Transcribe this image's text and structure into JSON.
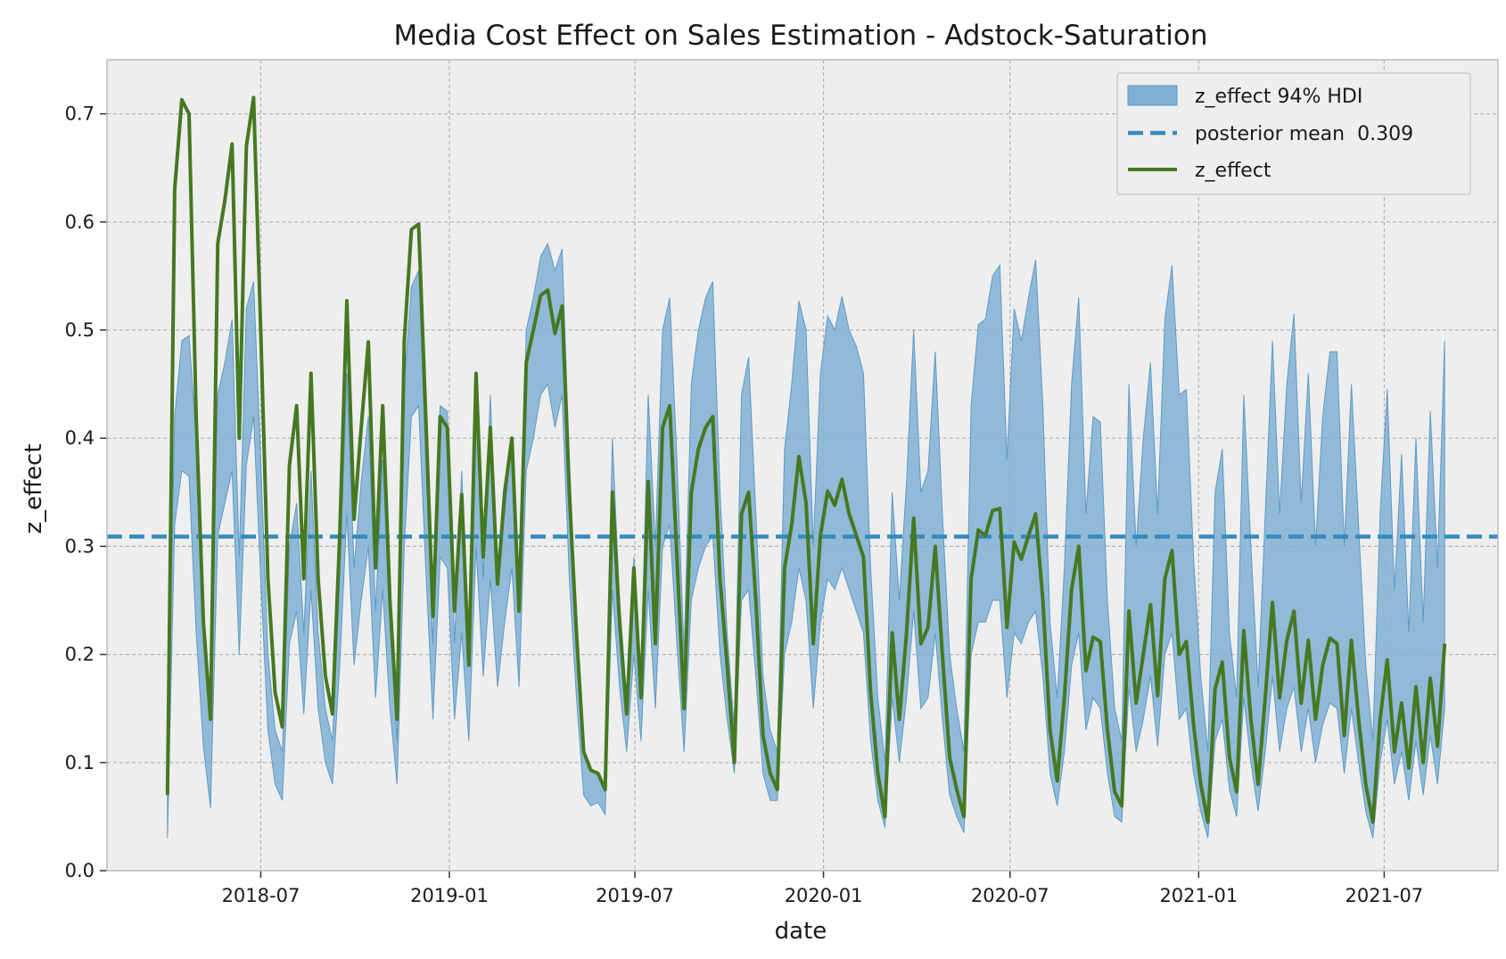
{
  "chart_data": {
    "type": "line",
    "title": "Media Cost Effect on Sales Estimation - Adstock-Saturation",
    "xlabel": "date",
    "ylabel": "z_effect",
    "xlim": [
      "2018-02-01",
      "2021-10-20"
    ],
    "ylim": [
      0,
      0.75
    ],
    "grid": true,
    "legend_position": "top-right",
    "x_ticks": [
      "2018-07",
      "2019-01",
      "2019-07",
      "2020-01",
      "2020-07",
      "2021-01",
      "2021-07"
    ],
    "y_ticks": [
      "0.0",
      "0.1",
      "0.2",
      "0.3",
      "0.4",
      "0.5",
      "0.6",
      "0.7"
    ],
    "legend": [
      "z_effect 94% HDI",
      "posterior mean  0.309",
      "z_effect"
    ],
    "colors": {
      "background": "#eeeeee",
      "grid": "#b2b2b2",
      "band_fill": "#7fb0d3",
      "band_edge": "#5f9ac5",
      "mean_line": "#348abd",
      "series_line": "#467821"
    },
    "series": [
      {
        "name": "z_effect",
        "dates": [
          "2018-04-01",
          "2018-04-08",
          "2018-04-15",
          "2018-04-22",
          "2018-04-29",
          "2018-05-06",
          "2018-05-13",
          "2018-05-20",
          "2018-05-27",
          "2018-06-03",
          "2018-06-10",
          "2018-06-17",
          "2018-06-24",
          "2018-07-01",
          "2018-07-08",
          "2018-07-15",
          "2018-07-22",
          "2018-07-29",
          "2018-08-05",
          "2018-08-12",
          "2018-08-19",
          "2018-08-26",
          "2018-09-02",
          "2018-09-09",
          "2018-09-16",
          "2018-09-23",
          "2018-09-30",
          "2018-10-07",
          "2018-10-14",
          "2018-10-21",
          "2018-10-28",
          "2018-11-04",
          "2018-11-11",
          "2018-11-18",
          "2018-11-25",
          "2018-12-02",
          "2018-12-09",
          "2018-12-16",
          "2018-12-23",
          "2018-12-30",
          "2019-01-06",
          "2019-01-13",
          "2019-01-20",
          "2019-01-27",
          "2019-02-03",
          "2019-02-10",
          "2019-02-17",
          "2019-02-24",
          "2019-03-03",
          "2019-03-10",
          "2019-03-17",
          "2019-03-24",
          "2019-03-31",
          "2019-04-07",
          "2019-04-14",
          "2019-04-21",
          "2019-04-28",
          "2019-05-05",
          "2019-05-12",
          "2019-05-19",
          "2019-05-26",
          "2019-06-02",
          "2019-06-09",
          "2019-06-16",
          "2019-06-23",
          "2019-06-30",
          "2019-07-07",
          "2019-07-14",
          "2019-07-21",
          "2019-07-28",
          "2019-08-04",
          "2019-08-11",
          "2019-08-18",
          "2019-08-25",
          "2019-09-01",
          "2019-09-08",
          "2019-09-15",
          "2019-09-22",
          "2019-09-29",
          "2019-10-06",
          "2019-10-13",
          "2019-10-20",
          "2019-10-27",
          "2019-11-03",
          "2019-11-10",
          "2019-11-17",
          "2019-11-24",
          "2019-12-01",
          "2019-12-08",
          "2019-12-15",
          "2019-12-22",
          "2019-12-29",
          "2020-01-05",
          "2020-01-12",
          "2020-01-19",
          "2020-01-26",
          "2020-02-02",
          "2020-02-09",
          "2020-02-16",
          "2020-02-23",
          "2020-03-01",
          "2020-03-08",
          "2020-03-15",
          "2020-03-22",
          "2020-03-29",
          "2020-04-05",
          "2020-04-12",
          "2020-04-19",
          "2020-04-26",
          "2020-05-03",
          "2020-05-10",
          "2020-05-17",
          "2020-05-24",
          "2020-05-31",
          "2020-06-07",
          "2020-06-14",
          "2020-06-21",
          "2020-06-28",
          "2020-07-05",
          "2020-07-12",
          "2020-07-19",
          "2020-07-26",
          "2020-08-02",
          "2020-08-09",
          "2020-08-16",
          "2020-08-23",
          "2020-08-30",
          "2020-09-06",
          "2020-09-13",
          "2020-09-20",
          "2020-09-27",
          "2020-10-04",
          "2020-10-11",
          "2020-10-18",
          "2020-10-25",
          "2020-11-01",
          "2020-11-08",
          "2020-11-15",
          "2020-11-22",
          "2020-11-29",
          "2020-12-06",
          "2020-12-13",
          "2020-12-20",
          "2020-12-27",
          "2021-01-03",
          "2021-01-10",
          "2021-01-17",
          "2021-01-24",
          "2021-01-31",
          "2021-02-07",
          "2021-02-14",
          "2021-02-21",
          "2021-02-28",
          "2021-03-07",
          "2021-03-14",
          "2021-03-21",
          "2021-03-28",
          "2021-04-04",
          "2021-04-11",
          "2021-04-18",
          "2021-04-25",
          "2021-05-02",
          "2021-05-09",
          "2021-05-16",
          "2021-05-23",
          "2021-05-30",
          "2021-06-06",
          "2021-06-13",
          "2021-06-20",
          "2021-06-27",
          "2021-07-04",
          "2021-07-11",
          "2021-07-18",
          "2021-07-25",
          "2021-08-01",
          "2021-08-08",
          "2021-08-15",
          "2021-08-22",
          "2021-08-29"
        ],
        "values": [
          0.07,
          0.63,
          0.713,
          0.7,
          0.42,
          0.23,
          0.14,
          0.58,
          0.62,
          0.672,
          0.4,
          0.67,
          0.715,
          0.5,
          0.27,
          0.165,
          0.133,
          0.375,
          0.43,
          0.27,
          0.46,
          0.27,
          0.18,
          0.145,
          0.31,
          0.527,
          0.325,
          0.41,
          0.489,
          0.28,
          0.43,
          0.25,
          0.14,
          0.49,
          0.593,
          0.598,
          0.42,
          0.235,
          0.42,
          0.41,
          0.24,
          0.348,
          0.19,
          0.46,
          0.29,
          0.41,
          0.265,
          0.35,
          0.4,
          0.24,
          0.47,
          0.5,
          0.532,
          0.537,
          0.497,
          0.522,
          0.35,
          0.22,
          0.11,
          0.093,
          0.09,
          0.075,
          0.35,
          0.23,
          0.145,
          0.28,
          0.16,
          0.36,
          0.21,
          0.41,
          0.43,
          0.29,
          0.15,
          0.35,
          0.39,
          0.41,
          0.42,
          0.27,
          0.19,
          0.1,
          0.33,
          0.35,
          0.25,
          0.125,
          0.09,
          0.075,
          0.28,
          0.32,
          0.383,
          0.34,
          0.21,
          0.31,
          0.351,
          0.338,
          0.362,
          0.33,
          0.31,
          0.29,
          0.165,
          0.09,
          0.05,
          0.22,
          0.14,
          0.22,
          0.326,
          0.21,
          0.225,
          0.3,
          0.2,
          0.105,
          0.075,
          0.05,
          0.27,
          0.315,
          0.31,
          0.333,
          0.335,
          0.225,
          0.304,
          0.288,
          0.31,
          0.33,
          0.25,
          0.13,
          0.083,
          0.16,
          0.26,
          0.3,
          0.185,
          0.216,
          0.212,
          0.13,
          0.073,
          0.06,
          0.24,
          0.155,
          0.2,
          0.246,
          0.162,
          0.27,
          0.296,
          0.2,
          0.212,
          0.135,
          0.08,
          0.045,
          0.168,
          0.193,
          0.105,
          0.073,
          0.222,
          0.14,
          0.08,
          0.16,
          0.248,
          0.16,
          0.213,
          0.24,
          0.155,
          0.213,
          0.14,
          0.19,
          0.215,
          0.21,
          0.125,
          0.213,
          0.14,
          0.08,
          0.045,
          0.14,
          0.195,
          0.11,
          0.155,
          0.095,
          0.17,
          0.1,
          0.178,
          0.115,
          0.21
        ]
      },
      {
        "name": "z_effect 94% HDI",
        "dates": [
          "2018-04-01",
          "2018-04-08",
          "2018-04-15",
          "2018-04-22",
          "2018-04-29",
          "2018-05-06",
          "2018-05-13",
          "2018-05-20",
          "2018-05-27",
          "2018-06-03",
          "2018-06-10",
          "2018-06-17",
          "2018-06-24",
          "2018-07-01",
          "2018-07-08",
          "2018-07-15",
          "2018-07-22",
          "2018-07-29",
          "2018-08-05",
          "2018-08-12",
          "2018-08-19",
          "2018-08-26",
          "2018-09-02",
          "2018-09-09",
          "2018-09-16",
          "2018-09-23",
          "2018-09-30",
          "2018-10-07",
          "2018-10-14",
          "2018-10-21",
          "2018-10-28",
          "2018-11-04",
          "2018-11-11",
          "2018-11-18",
          "2018-11-25",
          "2018-12-02",
          "2018-12-09",
          "2018-12-16",
          "2018-12-23",
          "2018-12-30",
          "2019-01-06",
          "2019-01-13",
          "2019-01-20",
          "2019-01-27",
          "2019-02-03",
          "2019-02-10",
          "2019-02-17",
          "2019-02-24",
          "2019-03-03",
          "2019-03-10",
          "2019-03-17",
          "2019-03-24",
          "2019-03-31",
          "2019-04-07",
          "2019-04-14",
          "2019-04-21",
          "2019-04-28",
          "2019-05-05",
          "2019-05-12",
          "2019-05-19",
          "2019-05-26",
          "2019-06-02",
          "2019-06-09",
          "2019-06-16",
          "2019-06-23",
          "2019-06-30",
          "2019-07-07",
          "2019-07-14",
          "2019-07-21",
          "2019-07-28",
          "2019-08-04",
          "2019-08-11",
          "2019-08-18",
          "2019-08-25",
          "2019-09-01",
          "2019-09-08",
          "2019-09-15",
          "2019-09-22",
          "2019-09-29",
          "2019-10-06",
          "2019-10-13",
          "2019-10-20",
          "2019-10-27",
          "2019-11-03",
          "2019-11-10",
          "2019-11-17",
          "2019-11-24",
          "2019-12-01",
          "2019-12-08",
          "2019-12-15",
          "2019-12-22",
          "2019-12-29",
          "2020-01-05",
          "2020-01-12",
          "2020-01-19",
          "2020-01-26",
          "2020-02-02",
          "2020-02-09",
          "2020-02-16",
          "2020-02-23",
          "2020-03-01",
          "2020-03-08",
          "2020-03-15",
          "2020-03-22",
          "2020-03-29",
          "2020-04-05",
          "2020-04-12",
          "2020-04-19",
          "2020-04-26",
          "2020-05-03",
          "2020-05-10",
          "2020-05-17",
          "2020-05-24",
          "2020-05-31",
          "2020-06-07",
          "2020-06-14",
          "2020-06-21",
          "2020-06-28",
          "2020-07-05",
          "2020-07-12",
          "2020-07-19",
          "2020-07-26",
          "2020-08-02",
          "2020-08-09",
          "2020-08-16",
          "2020-08-23",
          "2020-08-30",
          "2020-09-06",
          "2020-09-13",
          "2020-09-20",
          "2020-09-27",
          "2020-10-04",
          "2020-10-11",
          "2020-10-18",
          "2020-10-25",
          "2020-11-01",
          "2020-11-08",
          "2020-11-15",
          "2020-11-22",
          "2020-11-29",
          "2020-12-06",
          "2020-12-13",
          "2020-12-20",
          "2020-12-27",
          "2021-01-03",
          "2021-01-10",
          "2021-01-17",
          "2021-01-24",
          "2021-01-31",
          "2021-02-07",
          "2021-02-14",
          "2021-02-21",
          "2021-02-28",
          "2021-03-07",
          "2021-03-14",
          "2021-03-21",
          "2021-03-28",
          "2021-04-04",
          "2021-04-11",
          "2021-04-18",
          "2021-04-25",
          "2021-05-02",
          "2021-05-09",
          "2021-05-16",
          "2021-05-23",
          "2021-05-30",
          "2021-06-06",
          "2021-06-13",
          "2021-06-20",
          "2021-06-27",
          "2021-07-04",
          "2021-07-11",
          "2021-07-18",
          "2021-07-25",
          "2021-08-01",
          "2021-08-08",
          "2021-08-15",
          "2021-08-22",
          "2021-08-29"
        ],
        "lower": [
          0.03,
          0.32,
          0.37,
          0.365,
          0.22,
          0.115,
          0.058,
          0.31,
          0.34,
          0.37,
          0.2,
          0.375,
          0.42,
          0.27,
          0.13,
          0.08,
          0.065,
          0.21,
          0.24,
          0.145,
          0.26,
          0.15,
          0.1,
          0.08,
          0.19,
          0.33,
          0.19,
          0.25,
          0.3,
          0.16,
          0.26,
          0.15,
          0.08,
          0.3,
          0.42,
          0.43,
          0.28,
          0.14,
          0.29,
          0.28,
          0.14,
          0.22,
          0.12,
          0.3,
          0.18,
          0.27,
          0.17,
          0.23,
          0.28,
          0.17,
          0.37,
          0.4,
          0.44,
          0.45,
          0.41,
          0.44,
          0.27,
          0.16,
          0.07,
          0.06,
          0.063,
          0.052,
          0.26,
          0.17,
          0.11,
          0.2,
          0.12,
          0.26,
          0.15,
          0.3,
          0.32,
          0.21,
          0.11,
          0.25,
          0.28,
          0.3,
          0.31,
          0.2,
          0.14,
          0.09,
          0.25,
          0.26,
          0.18,
          0.09,
          0.065,
          0.065,
          0.2,
          0.23,
          0.28,
          0.25,
          0.15,
          0.23,
          0.27,
          0.26,
          0.28,
          0.26,
          0.24,
          0.22,
          0.12,
          0.065,
          0.04,
          0.16,
          0.1,
          0.16,
          0.24,
          0.15,
          0.16,
          0.22,
          0.14,
          0.07,
          0.05,
          0.035,
          0.2,
          0.23,
          0.23,
          0.25,
          0.25,
          0.16,
          0.22,
          0.21,
          0.23,
          0.24,
          0.18,
          0.09,
          0.06,
          0.11,
          0.19,
          0.22,
          0.13,
          0.16,
          0.15,
          0.09,
          0.05,
          0.045,
          0.17,
          0.11,
          0.14,
          0.18,
          0.115,
          0.2,
          0.22,
          0.14,
          0.15,
          0.09,
          0.055,
          0.03,
          0.12,
          0.14,
          0.075,
          0.05,
          0.16,
          0.1,
          0.055,
          0.11,
          0.18,
          0.11,
          0.15,
          0.17,
          0.11,
          0.15,
          0.1,
          0.135,
          0.155,
          0.15,
          0.09,
          0.15,
          0.1,
          0.055,
          0.03,
          0.1,
          0.14,
          0.08,
          0.11,
          0.065,
          0.12,
          0.07,
          0.125,
          0.08,
          0.15
        ],
        "upper": [
          0.1,
          0.42,
          0.49,
          0.495,
          0.4,
          0.23,
          0.14,
          0.44,
          0.47,
          0.51,
          0.29,
          0.52,
          0.545,
          0.38,
          0.2,
          0.13,
          0.11,
          0.3,
          0.34,
          0.22,
          0.37,
          0.22,
          0.15,
          0.12,
          0.27,
          0.46,
          0.28,
          0.36,
          0.42,
          0.24,
          0.38,
          0.23,
          0.12,
          0.45,
          0.54,
          0.555,
          0.38,
          0.21,
          0.43,
          0.425,
          0.21,
          0.37,
          0.19,
          0.45,
          0.27,
          0.44,
          0.27,
          0.33,
          0.4,
          0.26,
          0.5,
          0.53,
          0.568,
          0.58,
          0.555,
          0.575,
          0.38,
          0.23,
          0.11,
          0.093,
          0.09,
          0.075,
          0.4,
          0.25,
          0.16,
          0.29,
          0.18,
          0.44,
          0.3,
          0.5,
          0.53,
          0.38,
          0.2,
          0.45,
          0.5,
          0.53,
          0.545,
          0.35,
          0.22,
          0.13,
          0.44,
          0.475,
          0.33,
          0.18,
          0.13,
          0.11,
          0.39,
          0.45,
          0.527,
          0.5,
          0.3,
          0.46,
          0.513,
          0.5,
          0.531,
          0.5,
          0.485,
          0.46,
          0.28,
          0.16,
          0.1,
          0.35,
          0.25,
          0.36,
          0.5,
          0.35,
          0.37,
          0.48,
          0.33,
          0.2,
          0.15,
          0.11,
          0.43,
          0.505,
          0.51,
          0.55,
          0.56,
          0.38,
          0.52,
          0.49,
          0.53,
          0.565,
          0.43,
          0.23,
          0.16,
          0.28,
          0.45,
          0.53,
          0.33,
          0.42,
          0.415,
          0.25,
          0.15,
          0.12,
          0.45,
          0.3,
          0.4,
          0.47,
          0.33,
          0.51,
          0.56,
          0.44,
          0.445,
          0.29,
          0.18,
          0.11,
          0.35,
          0.39,
          0.22,
          0.16,
          0.44,
          0.3,
          0.17,
          0.33,
          0.49,
          0.33,
          0.45,
          0.515,
          0.34,
          0.46,
          0.3,
          0.42,
          0.48,
          0.48,
          0.3,
          0.45,
          0.32,
          0.19,
          0.12,
          0.33,
          0.445,
          0.26,
          0.385,
          0.22,
          0.4,
          0.23,
          0.425,
          0.28,
          0.49
        ]
      },
      {
        "name": "posterior mean  0.309",
        "value": 0.309
      }
    ]
  }
}
